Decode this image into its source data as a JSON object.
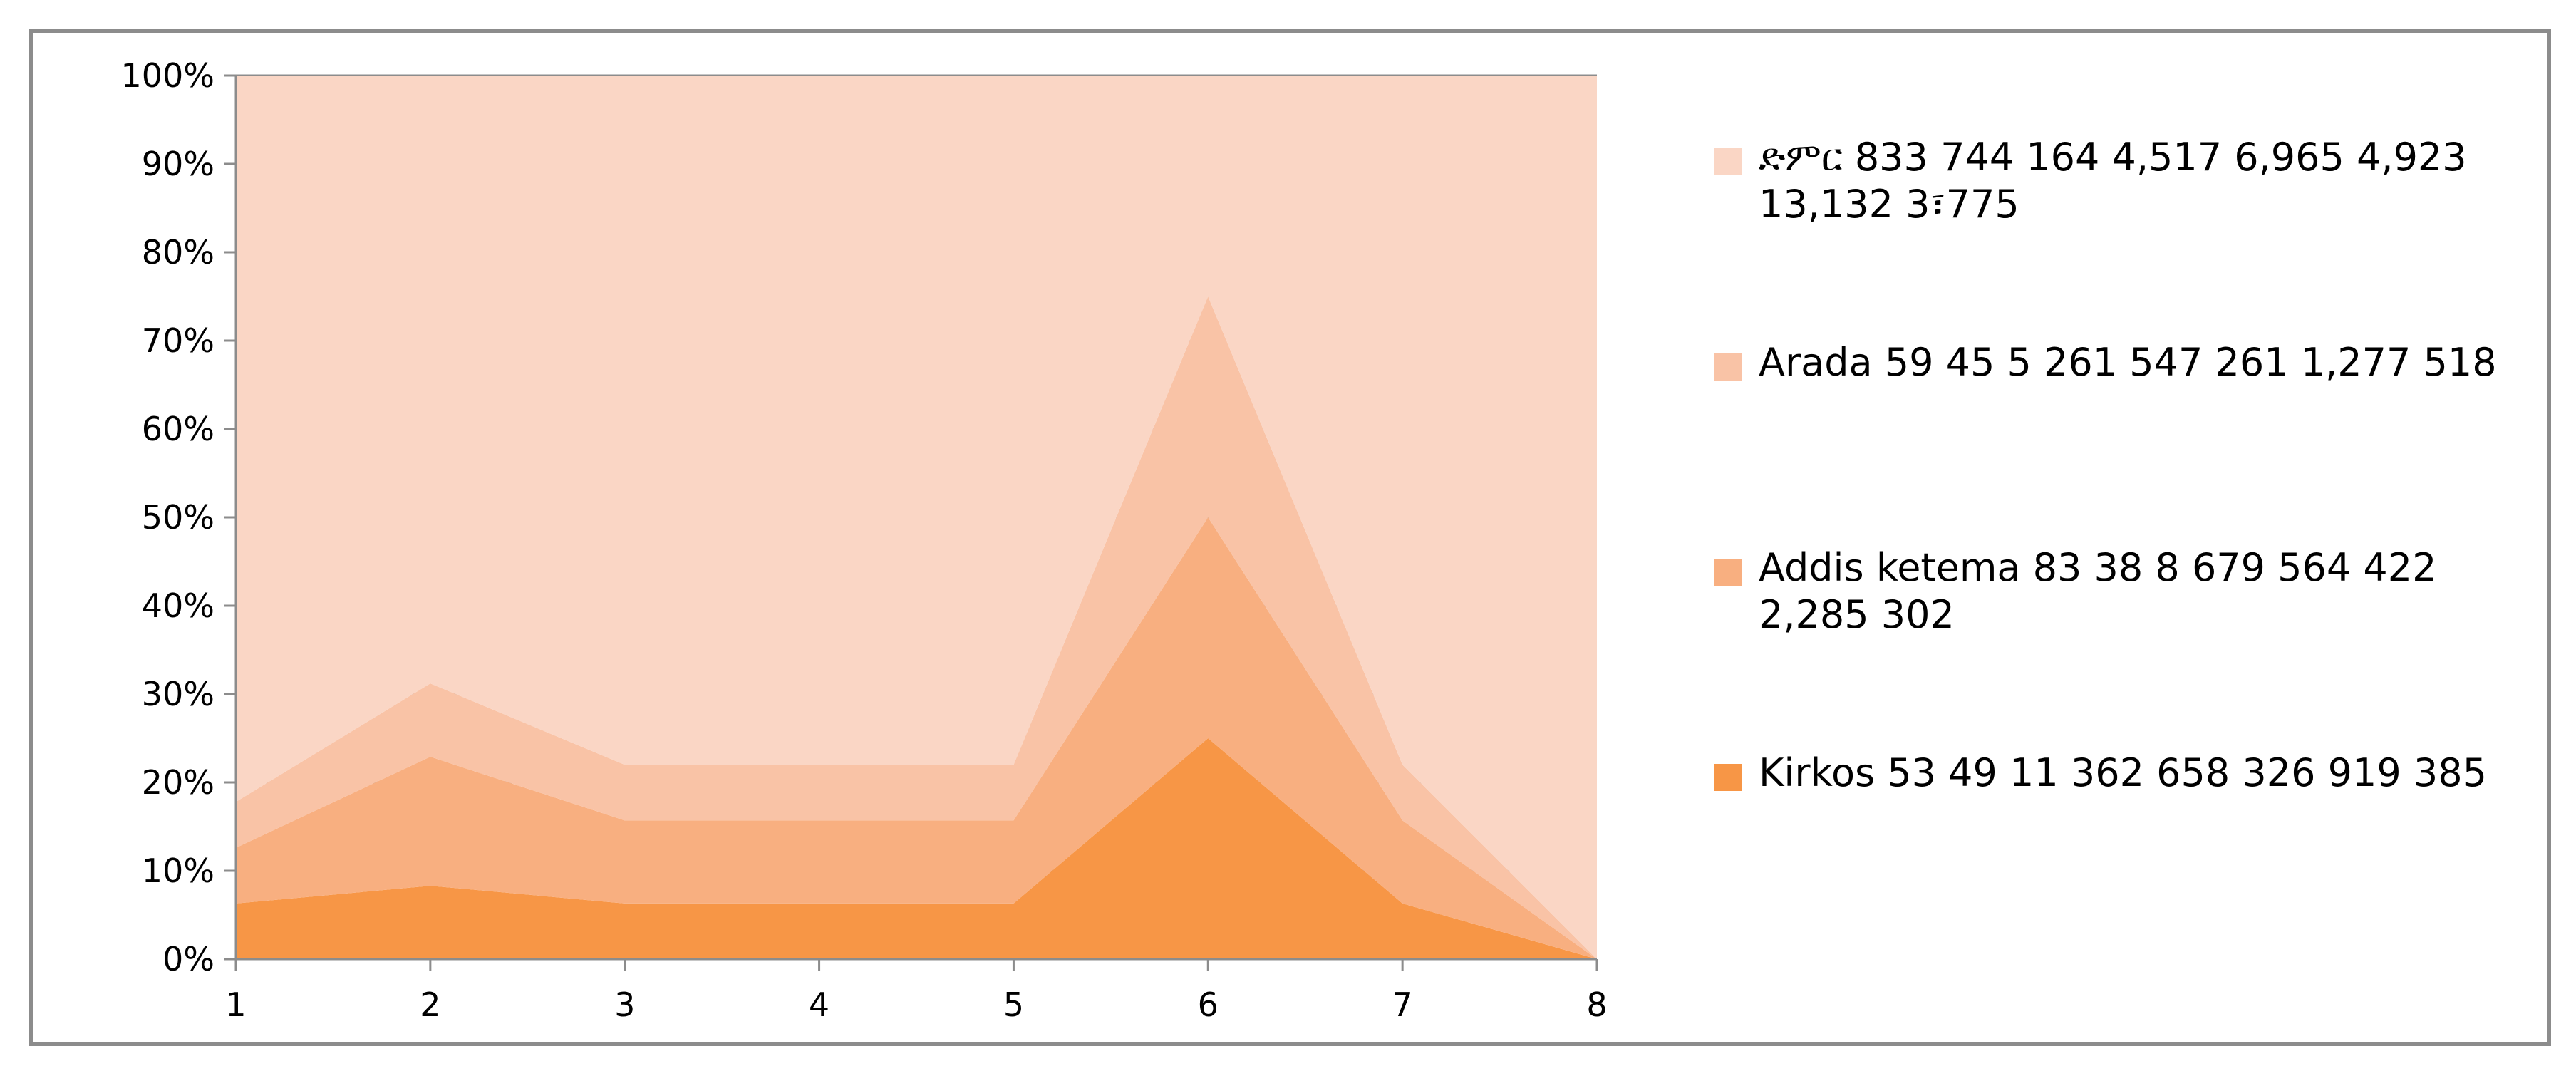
{
  "chart_data": {
    "type": "area",
    "stacking": "percent",
    "x": [
      1,
      2,
      3,
      4,
      5,
      6,
      7,
      8
    ],
    "ylim": [
      0,
      100
    ],
    "yticks": [
      "0%",
      "10%",
      "20%",
      "30%",
      "40%",
      "50%",
      "60%",
      "70%",
      "80%",
      "90%",
      "100%"
    ],
    "xticks": [
      "1",
      "2",
      "3",
      "4",
      "5",
      "6",
      "7",
      "8"
    ],
    "grid": "horizontal",
    "legend_position": "right",
    "series": [
      {
        "name": "Kirkos  53 49 11 362 658 326 919 385",
        "values": [
          6.3,
          8.3,
          6.3,
          6.3,
          6.3,
          25,
          6.3,
          0
        ],
        "color": "#f79646"
      },
      {
        "name": "Addis ketema 83 38 8 679 564 422 2,285 302",
        "values": [
          6.3,
          14.6,
          9.4,
          9.4,
          9.4,
          25,
          9.4,
          0
        ],
        "color": "#f8af80"
      },
      {
        "name": "Arada  59 45 5 261 547 261 1,277 518",
        "values": [
          5.2,
          8.3,
          6.3,
          6.3,
          6.3,
          25,
          6.3,
          0
        ],
        "color": "#f9c3a6"
      },
      {
        "name": "ድምር 833 744 164 4,517 6,965 4,923 13,132 3፣775",
        "values": [
          82.2,
          68.8,
          78.0,
          78.0,
          78.0,
          25,
          78.0,
          100
        ],
        "color": "#fad6c5"
      }
    ]
  }
}
